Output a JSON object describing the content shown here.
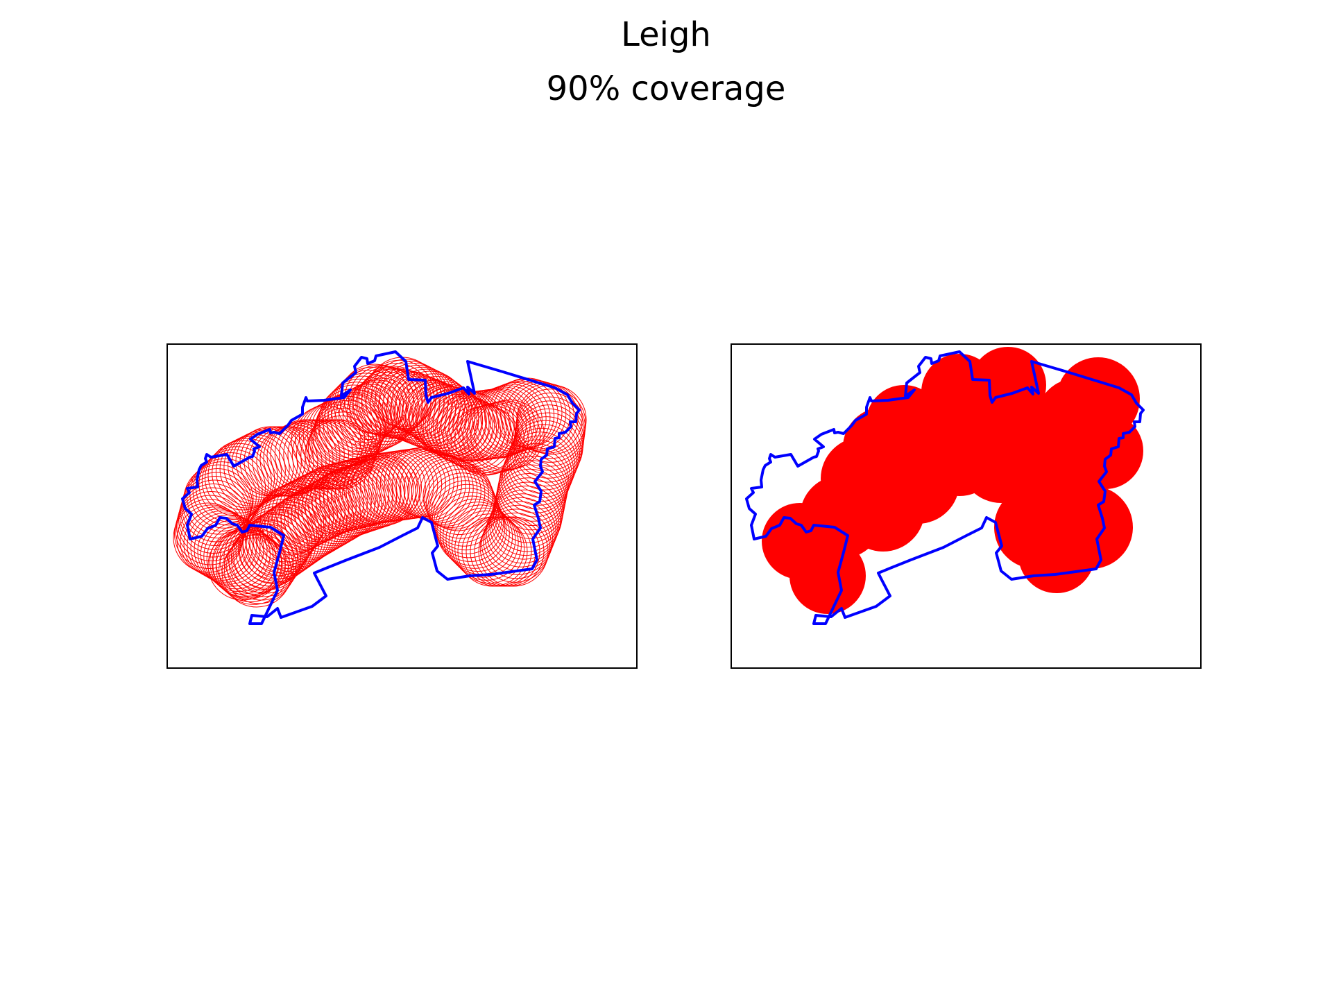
{
  "figure": {
    "title": "Leigh",
    "subtitle": "90% coverage"
  },
  "panels": [
    {
      "style": "outline-circles"
    },
    {
      "style": "filled-circles"
    }
  ],
  "colors": {
    "boundary": "#0000ff",
    "circles": "#ff0000",
    "frame": "#000000",
    "background": "#ffffff"
  }
}
